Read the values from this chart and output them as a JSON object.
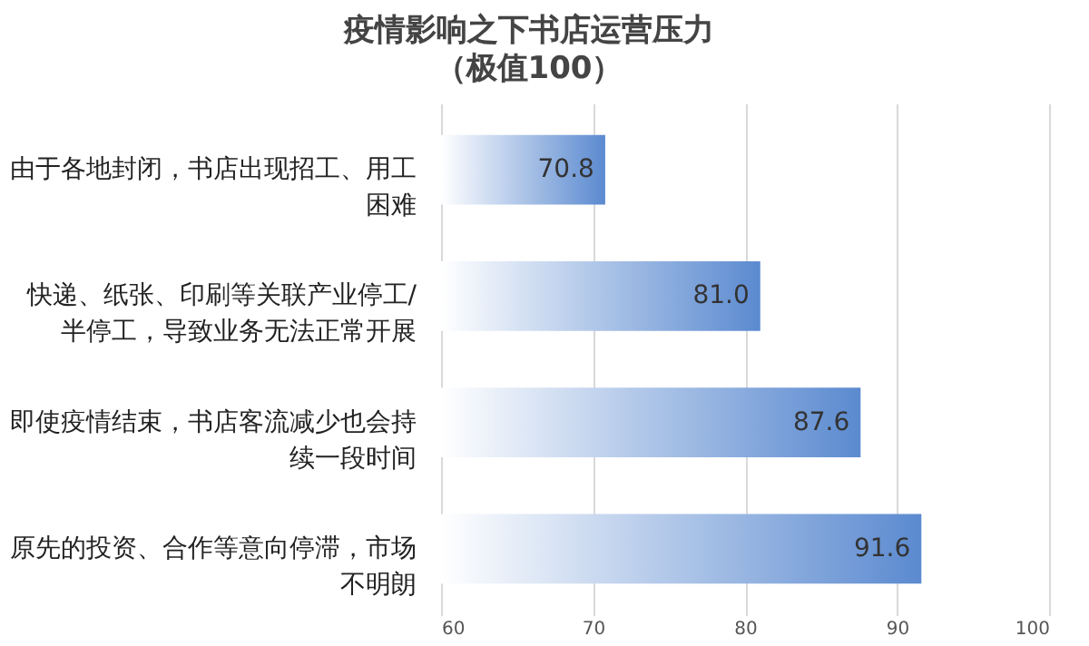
{
  "chart_data": {
    "type": "bar",
    "orientation": "horizontal",
    "title": "疫情影响之下书店运营压力",
    "subtitle": "（极值100）",
    "categories": [
      "由于各地封闭，书店出现招工、用工困难",
      "快递、纸张、印刷等关联产业停工/半停工，导致业务无法正常开展",
      "即使疫情结束，书店客流减少也会持续一段时间",
      "原先的投资、合作等意向停滞，市场不明朗"
    ],
    "values": [
      70.8,
      81.0,
      87.6,
      91.6
    ],
    "value_labels": [
      "70.8",
      "81.0",
      "87.6",
      "91.6"
    ],
    "color": "#5b8ad0",
    "xlim": [
      60,
      100
    ],
    "xticks": [
      60,
      70,
      80,
      90,
      100
    ],
    "grid": "x"
  }
}
